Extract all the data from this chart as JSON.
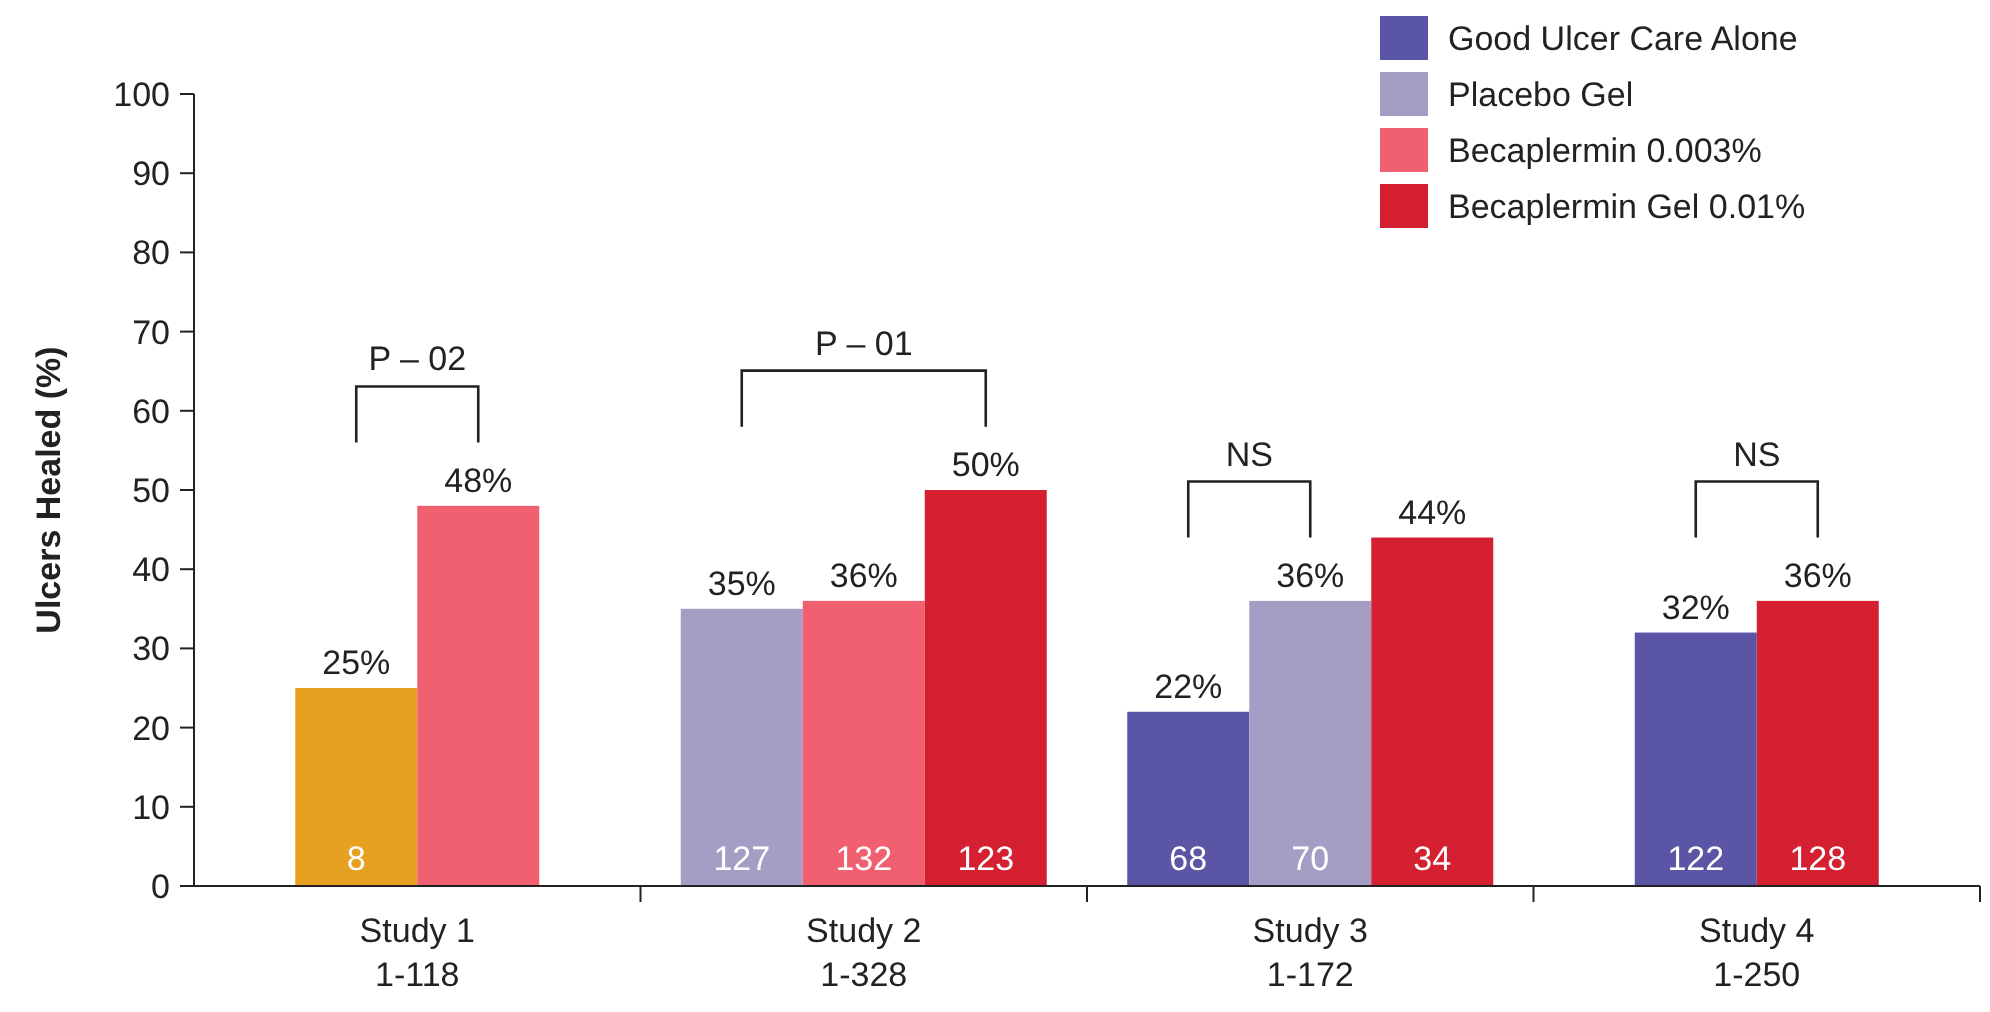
{
  "chart_data": {
    "type": "bar",
    "ylabel": "Ulcers Healed (%)",
    "categories": [
      "Study 1\n1-118",
      "Study 2\n1-328",
      "Study 3\n1-172",
      "Study 4\n1-250"
    ],
    "series": [
      {
        "color": "#e8a020",
        "values": [
          25,
          null,
          null,
          null
        ],
        "value_labels": [
          "25%",
          null,
          null,
          null
        ]
      },
      {
        "name": "Good Ulcer Care Alone",
        "color": "#5a55a5",
        "values": [
          null,
          null,
          22,
          32
        ],
        "value_labels": [
          null,
          null,
          "22%",
          "32%"
        ]
      },
      {
        "name": "Placebo Gel",
        "color": "#a59ec4",
        "values": [
          null,
          35,
          36,
          null
        ],
        "value_labels": [
          null,
          "35%",
          "36%",
          null
        ]
      },
      {
        "name": "Becaplermin 0.003%",
        "color": "#f06070",
        "values": [
          48,
          36,
          null,
          null
        ],
        "value_labels": [
          "48%",
          "36%",
          null,
          null
        ]
      },
      {
        "name": "Becaplermin Gel 0.01%",
        "color": "#d42030",
        "values": [
          null,
          50,
          44,
          36
        ],
        "value_labels": [
          null,
          "50%",
          "44%",
          "36%"
        ]
      }
    ],
    "annotations": [
      "P – 02",
      "P – 01",
      "NS",
      "NS",
      "8",
      null,
      "127",
      "132",
      "123",
      "68",
      "70",
      "34",
      "122",
      "128"
    ],
    "ylim": [
      0,
      100
    ],
    "yticks": [
      0,
      10,
      20,
      30,
      40,
      50,
      60,
      70,
      80,
      90,
      100
    ],
    "legend": "top right"
  }
}
